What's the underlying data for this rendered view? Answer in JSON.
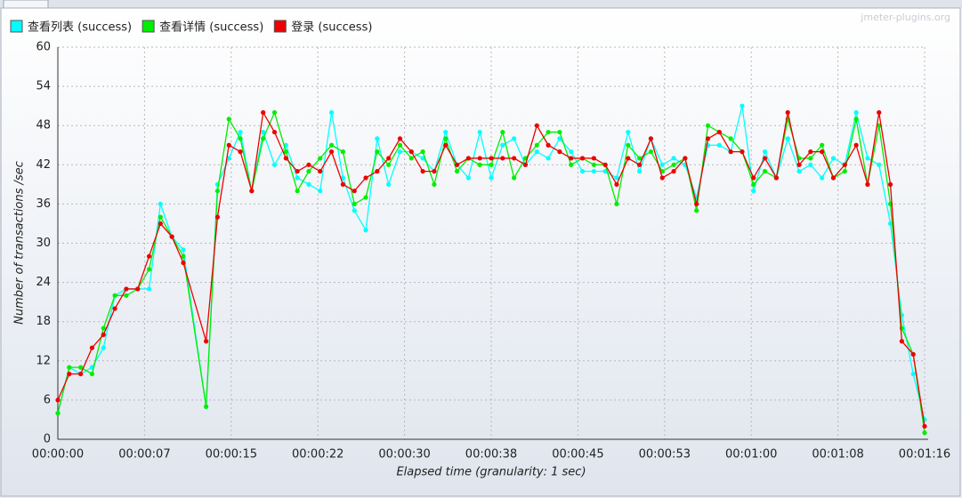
{
  "chart_data": {
    "type": "line",
    "watermark": "jmeter-plugins.org",
    "xlabel": "Elapsed time (granularity: 1 sec)",
    "ylabel": "Number of transactions /sec",
    "x": [
      0,
      1,
      2,
      3,
      4,
      5,
      6,
      7,
      8,
      9,
      10,
      11,
      13,
      14,
      15,
      16,
      17,
      18,
      19,
      20,
      21,
      22,
      23,
      24,
      25,
      26,
      27,
      28,
      29,
      30,
      31,
      32,
      33,
      34,
      35,
      36,
      37,
      38,
      39,
      40,
      41,
      42,
      43,
      44,
      45,
      46,
      47,
      48,
      49,
      50,
      51,
      52,
      53,
      54,
      55,
      56,
      57,
      58,
      59,
      60,
      61,
      62,
      63,
      64,
      65,
      66,
      67,
      68,
      69,
      70,
      71,
      72,
      73,
      74,
      75,
      76
    ],
    "series": [
      {
        "name": "查看列表 (success)",
        "color": "#00ffff",
        "values": [
          4,
          11,
          10,
          11,
          14,
          22,
          23,
          23,
          23,
          36,
          31,
          29,
          5,
          39,
          43,
          47,
          38,
          47,
          42,
          45,
          40,
          39,
          38,
          50,
          40,
          35,
          32,
          46,
          39,
          44,
          44,
          43,
          41,
          47,
          42,
          40,
          47,
          40,
          45,
          46,
          42,
          44,
          43,
          46,
          44,
          41,
          41,
          41,
          40,
          47,
          41,
          46,
          42,
          43,
          42,
          37,
          45,
          45,
          44,
          51,
          38,
          44,
          40,
          46,
          41,
          42,
          40,
          43,
          42,
          50,
          43,
          42,
          33,
          19,
          10,
          3
        ]
      },
      {
        "name": "查看详情 (success)",
        "color": "#00ee00",
        "values": [
          4,
          11,
          11,
          10,
          17,
          22,
          22,
          23,
          26,
          34,
          31,
          28,
          5,
          38,
          49,
          46,
          38,
          46,
          50,
          44,
          38,
          41,
          43,
          45,
          44,
          36,
          37,
          44,
          42,
          45,
          43,
          44,
          39,
          46,
          41,
          43,
          42,
          42,
          47,
          40,
          43,
          45,
          47,
          47,
          42,
          43,
          42,
          42,
          36,
          45,
          43,
          44,
          41,
          42,
          43,
          35,
          48,
          47,
          46,
          44,
          39,
          41,
          40,
          49,
          43,
          43,
          45,
          40,
          41,
          49,
          39,
          48,
          36,
          17,
          13,
          1
        ]
      },
      {
        "name": "登录 (success)",
        "color": "#ee0000",
        "values": [
          6,
          10,
          10,
          14,
          16,
          20,
          23,
          23,
          28,
          33,
          31,
          27,
          15,
          34,
          45,
          44,
          38,
          50,
          47,
          43,
          41,
          42,
          41,
          44,
          39,
          38,
          40,
          41,
          43,
          46,
          44,
          41,
          41,
          45,
          42,
          43,
          43,
          43,
          43,
          43,
          42,
          48,
          45,
          44,
          43,
          43,
          43,
          42,
          39,
          43,
          42,
          46,
          40,
          41,
          43,
          36,
          46,
          47,
          44,
          44,
          40,
          43,
          40,
          50,
          42,
          44,
          44,
          40,
          42,
          45,
          39,
          50,
          39,
          15,
          13,
          2
        ]
      }
    ],
    "xlim": [
      0,
      76
    ],
    "xticks": [
      {
        "value": 0,
        "label": "00:00:00"
      },
      {
        "value": 7.6,
        "label": "00:00:07"
      },
      {
        "value": 15.2,
        "label": "00:00:15"
      },
      {
        "value": 22.8,
        "label": "00:00:22"
      },
      {
        "value": 30.4,
        "label": "00:00:30"
      },
      {
        "value": 38,
        "label": "00:00:38"
      },
      {
        "value": 45.6,
        "label": "00:00:45"
      },
      {
        "value": 53.2,
        "label": "00:00:53"
      },
      {
        "value": 60.8,
        "label": "00:01:00"
      },
      {
        "value": 68.4,
        "label": "00:01:08"
      },
      {
        "value": 76,
        "label": "00:01:16"
      }
    ],
    "ylim": [
      0,
      60
    ],
    "yticks": [
      0,
      6,
      12,
      18,
      24,
      30,
      36,
      42,
      48,
      54,
      60
    ],
    "grid": true,
    "legend": "top-left"
  }
}
